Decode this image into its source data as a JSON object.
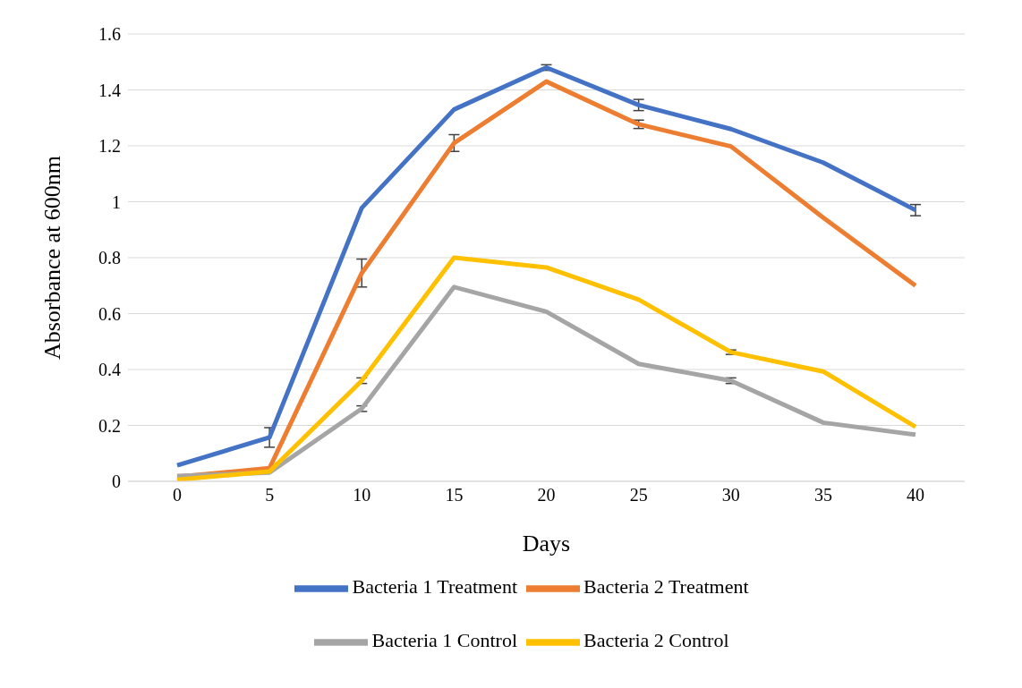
{
  "chart_data": {
    "type": "line",
    "xlabel": "Days",
    "ylabel": "Absorbance at 600nm",
    "categories": [
      "0",
      "5",
      "10",
      "15",
      "20",
      "25",
      "30",
      "35",
      "40"
    ],
    "ylim": [
      0,
      1.6
    ],
    "yticks": [
      0,
      0.2,
      0.4,
      0.6,
      0.8,
      1,
      1.2,
      1.4,
      1.6
    ],
    "grid": "y",
    "legend": "bottom",
    "marker": "none",
    "line_style": "solid",
    "series": [
      {
        "name": "Bacteria 1 Treatment",
        "color": "#4472c4",
        "values": [
          0.057,
          0.157,
          0.978,
          1.33,
          1.48,
          1.346,
          1.26,
          1.14,
          0.97
        ],
        "errors": [
          null,
          0.035,
          null,
          null,
          0.01,
          0.02,
          null,
          null,
          0.02
        ]
      },
      {
        "name": "Bacteria 2 Treatment",
        "color": "#ed7d31",
        "values": [
          0.016,
          0.047,
          0.745,
          1.21,
          1.43,
          1.277,
          1.198,
          0.943,
          0.7
        ],
        "errors": [
          null,
          null,
          0.05,
          0.03,
          null,
          0.015,
          null,
          null,
          null
        ]
      },
      {
        "name": "Bacteria 1 Control",
        "color": "#a5a5a5",
        "values": [
          0.019,
          0.031,
          0.26,
          0.695,
          0.607,
          0.42,
          0.36,
          0.21,
          0.167
        ],
        "errors": [
          null,
          null,
          0.01,
          null,
          null,
          null,
          0.01,
          null,
          null
        ]
      },
      {
        "name": "Bacteria 2 Control",
        "color": "#ffc000",
        "values": [
          0.006,
          0.035,
          0.36,
          0.8,
          0.765,
          0.65,
          0.462,
          0.393,
          0.195
        ],
        "errors": [
          null,
          null,
          0.01,
          null,
          null,
          null,
          0.008,
          null,
          null
        ]
      }
    ]
  }
}
